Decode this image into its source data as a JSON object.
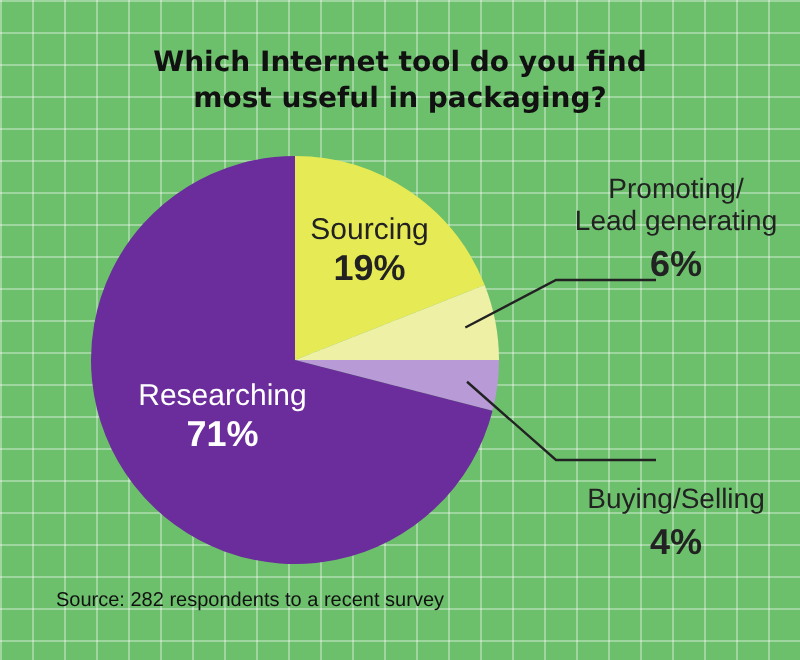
{
  "chart_data": {
    "type": "pie",
    "title": "Which Internet tool do you find\nmost useful in packaging?",
    "categories": [
      "Sourcing",
      "Promoting/\nLead generating",
      "Buying/Selling",
      "Researching"
    ],
    "values": [
      19,
      6,
      4,
      71
    ],
    "colors": [
      "#e6ea55",
      "#eef0a6",
      "#b79ad6",
      "#6b2c9c"
    ],
    "value_labels": [
      "19%",
      "6%",
      "4%",
      "71%"
    ],
    "legend": false,
    "annotations": [
      "Source: 282 respondents to a recent survey"
    ]
  }
}
